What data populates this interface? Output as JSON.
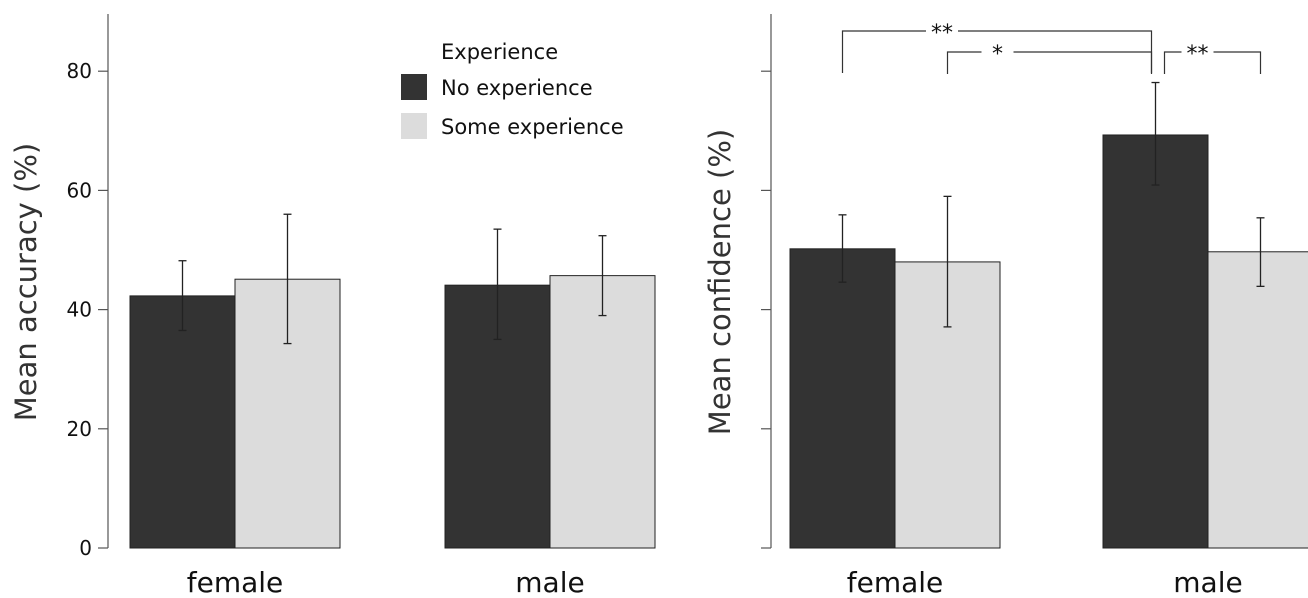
{
  "colors": {
    "no_experience": "#333333",
    "some_experience": "#dcdcdc",
    "bar_edge": "#222222"
  },
  "legend": {
    "title": "Experience",
    "items": [
      {
        "label": "No experience",
        "color": "#333333"
      },
      {
        "label": "Some experience",
        "color": "#dcdcdc"
      }
    ]
  },
  "chart_data": [
    {
      "type": "bar",
      "ylabel": "Mean accuracy (%)",
      "ylim": [
        0,
        90
      ],
      "yticks": [
        0,
        20,
        40,
        60,
        80
      ],
      "ytick_labels": [
        "0",
        "20",
        "40",
        "60",
        "80"
      ],
      "categories": [
        "female",
        "male"
      ],
      "series": [
        {
          "name": "No experience",
          "values": [
            42.3,
            44.1
          ],
          "err_low": [
            36.5,
            35.0
          ],
          "err_high": [
            48.2,
            53.5
          ]
        },
        {
          "name": "Some experience",
          "values": [
            45.1,
            45.7
          ],
          "err_low": [
            34.3,
            39.0
          ],
          "err_high": [
            56.0,
            52.4
          ]
        }
      ],
      "legend_position": "top-right"
    },
    {
      "type": "bar",
      "ylabel": "Mean confidence (%)",
      "ylim": [
        0,
        90
      ],
      "yticks": [
        0,
        20,
        40,
        60,
        80
      ],
      "ytick_labels": [
        "",
        "",
        "",
        "",
        ""
      ],
      "categories": [
        "female",
        "male"
      ],
      "series": [
        {
          "name": "No experience",
          "values": [
            50.2,
            69.3
          ],
          "err_low": [
            44.6,
            60.9
          ],
          "err_high": [
            55.9,
            78.1
          ]
        },
        {
          "name": "Some experience",
          "values": [
            48.0,
            49.7
          ],
          "err_low": [
            37.1,
            43.9
          ],
          "err_high": [
            59.0,
            55.4
          ]
        }
      ],
      "significance": [
        {
          "from": "female-no-experience",
          "to": "male-no-experience",
          "label": "**"
        },
        {
          "from": "female-some-experience",
          "to": "male-no-experience",
          "label": "*"
        },
        {
          "from": "male-no-experience",
          "to": "male-some-experience",
          "label": "**"
        }
      ]
    }
  ]
}
